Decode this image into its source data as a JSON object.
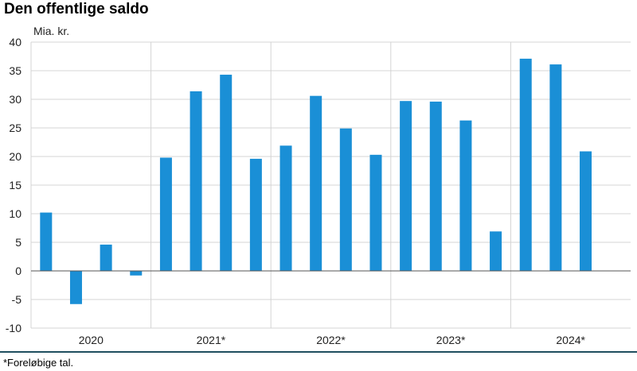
{
  "chart_data": {
    "type": "bar",
    "title": "Den offentlige saldo",
    "unit_label": "Mia. kr.",
    "xlabel": "",
    "ylabel": "",
    "ylim": [
      -10,
      40
    ],
    "yticks": [
      40,
      35,
      30,
      25,
      20,
      15,
      10,
      5,
      0,
      -5,
      -10
    ],
    "ytick_labels": [
      "40",
      "35",
      "30",
      "25",
      "20",
      "15",
      "10",
      "5",
      "0",
      "-5",
      "-10"
    ],
    "grid": true,
    "legend": "none",
    "bar_color": "#1a8fd6",
    "groups": [
      {
        "label": "2020",
        "values": [
          10.2,
          -5.8,
          4.6,
          -0.8
        ]
      },
      {
        "label": "2021*",
        "values": [
          19.8,
          31.4,
          34.3,
          19.6
        ]
      },
      {
        "label": "2022*",
        "values": [
          21.9,
          30.6,
          24.9,
          20.3
        ]
      },
      {
        "label": "2023*",
        "values": [
          29.7,
          29.6,
          26.3,
          6.9
        ]
      },
      {
        "label": "2024*",
        "values": [
          37.1,
          36.1,
          20.9
        ]
      }
    ]
  },
  "footnote": "*Foreløbige tal."
}
